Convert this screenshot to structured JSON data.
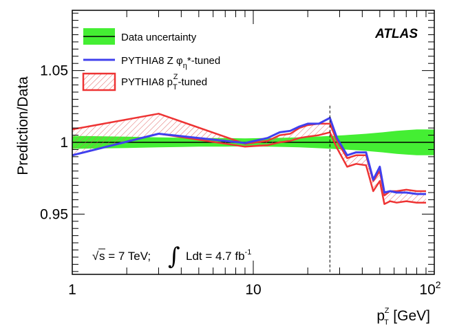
{
  "chart_data": {
    "type": "line",
    "title": "",
    "experiment_label": "ATLAS",
    "xlabel": {
      "main": "p",
      "sub": "T",
      "sup": "Z",
      "unit": " [GeV]"
    },
    "ylabel": "Prediction/Data",
    "x_scale": "log",
    "xlim": [
      1,
      100
    ],
    "ylim": [
      0.908,
      1.092
    ],
    "x_ticks": [
      {
        "value": 1,
        "label": "1"
      },
      {
        "value": 10,
        "label": "10"
      },
      {
        "value": 100,
        "label": "10",
        "exp": "2"
      }
    ],
    "y_ticks": [
      {
        "value": 0.95,
        "label": "0.95"
      },
      {
        "value": 1.0,
        "label": "1"
      },
      {
        "value": 1.05,
        "label": "1.05"
      }
    ],
    "reference_line": 1.0,
    "vertical_marker_x": 26.5,
    "legend": [
      {
        "key": "data",
        "label": "Data uncertainty"
      },
      {
        "key": "phi",
        "label_main": "PYTHIA8 Z φ",
        "label_sub": "η",
        "label_after": "*-tuned"
      },
      {
        "key": "pt",
        "label_main": "PYTHIA8 p",
        "label_sub": "T",
        "label_sup": "Z",
        "label_after": "-tuned"
      }
    ],
    "annotation": {
      "sqrt": "√",
      "s_text": "s = 7 TeV;",
      "integral": "∫",
      "ldt_text": "Ldt = 4.7 fb",
      "ldt_sup": "-1"
    },
    "colors": {
      "data_band": "#44ee33",
      "phi_line": "#4040ee",
      "pt_line": "#ee3333",
      "reference": "#000000"
    },
    "series": [
      {
        "name": "Data uncertainty",
        "x": [
          1,
          2,
          3,
          4,
          5,
          7,
          9,
          12,
          15,
          18,
          22,
          27,
          32,
          37,
          42,
          47,
          52,
          57,
          62,
          70,
          80,
          90,
          100
        ],
        "lower": [
          0.9955,
          0.996,
          0.9965,
          0.9968,
          0.997,
          0.997,
          0.9972,
          0.997,
          0.9968,
          0.9965,
          0.996,
          0.9955,
          0.995,
          0.9945,
          0.994,
          0.9935,
          0.993,
          0.9925,
          0.992,
          0.9915,
          0.991,
          0.991,
          0.991
        ],
        "upper": [
          1.0045,
          1.004,
          1.0035,
          1.0032,
          1.003,
          1.003,
          1.0028,
          1.003,
          1.0032,
          1.0035,
          1.004,
          1.0045,
          1.005,
          1.0055,
          1.006,
          1.0065,
          1.007,
          1.0075,
          1.008,
          1.0085,
          1.009,
          1.009,
          1.009
        ]
      },
      {
        "name": "PYTHIA8 Z phi_eta*-tuned",
        "x": [
          1,
          3,
          9,
          12,
          14,
          16,
          18,
          20,
          23,
          26.5,
          29,
          33,
          37,
          42,
          46,
          50,
          53,
          57,
          62,
          70,
          80,
          90
        ],
        "values": [
          0.991,
          1.006,
          0.9995,
          1.003,
          1.007,
          1.008,
          1.011,
          1.013,
          1.013,
          1.017,
          1.003,
          0.991,
          0.993,
          0.993,
          0.974,
          0.983,
          0.965,
          0.966,
          0.965,
          0.965,
          0.964,
          0.964
        ]
      },
      {
        "name": "PYTHIA8 pT^Z-tuned",
        "x": [
          1,
          3,
          9,
          12,
          14,
          16,
          18,
          20,
          23,
          26.5,
          29,
          33,
          37,
          42,
          46,
          50,
          53,
          57,
          62,
          70,
          80,
          90
        ],
        "upper": [
          1.009,
          1.02,
          0.999,
          1.001,
          1.005,
          1.006,
          1.01,
          1.012,
          1.013,
          1.013,
          1.001,
          0.989,
          0.991,
          0.991,
          0.973,
          0.98,
          0.963,
          0.966,
          0.966,
          0.967,
          0.966,
          0.966
        ],
        "lower": [
          0.991,
          1.006,
          0.997,
          0.998,
          1.0,
          1.001,
          1.003,
          1.004,
          1.005,
          1.007,
          0.996,
          0.983,
          0.985,
          0.984,
          0.966,
          0.973,
          0.957,
          0.959,
          0.958,
          0.959,
          0.958,
          0.958
        ]
      }
    ]
  }
}
